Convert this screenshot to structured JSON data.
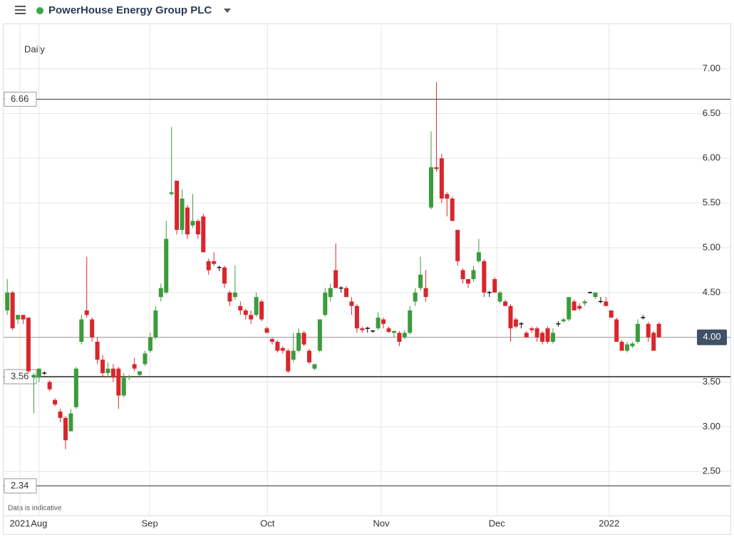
{
  "chart_data": {
    "type": "candlestick",
    "title": "PowerHouse Energy Group PLC",
    "interval": "Daily",
    "note": "Data is indicative",
    "up_color": "#3c9b3c",
    "down_color": "#d8262c",
    "flat_color": "#111111",
    "open": [
      4.3,
      4.5,
      4.2,
      4.25,
      4.22,
      3.55,
      3.55,
      3.6,
      3.5,
      3.3,
      3.17,
      3.1,
      2.95,
      3.22,
      3.95,
      4.3,
      4.2,
      3.95,
      3.75,
      3.6,
      3.65,
      3.65,
      3.35,
      3.55,
      3.7,
      3.58,
      3.7,
      3.85,
      4.0,
      4.45,
      4.5,
      5.6,
      5.75,
      5.2,
      5.45,
      5.25,
      5.3,
      5.35,
      4.85,
      4.85,
      4.78,
      4.78,
      4.5,
      4.45,
      4.35,
      4.3,
      4.25,
      4.25,
      4.4,
      4.1,
      3.98,
      3.95,
      3.88,
      3.85,
      3.75,
      3.85,
      4.05,
      3.85,
      3.65,
      3.85,
      4.25,
      4.45,
      4.75,
      4.55,
      4.55,
      4.4,
      4.35,
      4.1,
      4.1,
      4.07,
      4.1,
      4.2,
      4.1,
      4.05,
      4.05,
      4.0,
      4.05,
      4.4,
      4.55,
      4.55,
      5.45,
      5.9,
      6.0,
      5.6,
      5.55,
      5.2,
      4.75,
      4.65,
      4.65,
      4.85,
      4.85,
      4.5,
      4.65,
      4.4,
      4.4,
      4.35,
      4.2,
      4.15,
      4.05,
      4.1,
      4.1,
      4.05,
      4.1,
      3.95,
      4.15,
      4.18,
      4.2,
      4.4,
      4.35,
      4.38,
      4.5,
      4.45,
      4.4,
      4.4,
      4.3,
      4.2,
      3.95,
      3.85,
      3.9,
      3.95,
      4.22,
      4.15,
      4.05,
      4.15
    ],
    "high": [
      4.65,
      4.52,
      4.25,
      4.25,
      4.22,
      3.6,
      3.65,
      3.62,
      3.52,
      3.32,
      3.2,
      3.12,
      3.2,
      3.67,
      4.25,
      4.9,
      4.22,
      4.0,
      3.8,
      3.72,
      3.7,
      3.67,
      3.6,
      3.58,
      3.77,
      3.62,
      3.85,
      4.05,
      4.35,
      4.6,
      5.3,
      6.35,
      5.75,
      5.65,
      5.48,
      5.6,
      5.32,
      5.38,
      4.88,
      4.95,
      4.8,
      4.8,
      4.52,
      4.8,
      4.4,
      4.32,
      4.3,
      4.5,
      4.42,
      4.12,
      4.0,
      3.97,
      3.9,
      3.87,
      4.05,
      4.1,
      4.07,
      3.87,
      3.7,
      4.2,
      4.55,
      4.6,
      5.05,
      4.57,
      4.57,
      4.45,
      4.37,
      4.12,
      4.12,
      4.08,
      4.28,
      4.22,
      4.12,
      4.08,
      4.07,
      4.08,
      4.35,
      4.55,
      4.9,
      4.75,
      6.3,
      6.85,
      6.05,
      5.62,
      5.57,
      5.2,
      4.77,
      4.65,
      4.8,
      5.1,
      4.87,
      4.52,
      4.67,
      4.52,
      4.42,
      4.37,
      4.22,
      4.17,
      4.07,
      4.12,
      4.12,
      4.07,
      4.12,
      4.1,
      4.18,
      4.22,
      4.45,
      4.42,
      4.38,
      4.42,
      4.51,
      4.5,
      4.45,
      4.45,
      4.3,
      4.22,
      3.97,
      3.95,
      3.95,
      4.2,
      4.25,
      4.17,
      4.07,
      4.17
    ],
    "low": [
      4.25,
      4.08,
      4.15,
      4.15,
      3.6,
      3.15,
      3.5,
      3.58,
      3.4,
      3.23,
      3.05,
      2.75,
      2.95,
      3.2,
      3.92,
      4.22,
      3.95,
      3.7,
      3.55,
      3.55,
      3.5,
      3.2,
      3.33,
      3.52,
      3.62,
      3.55,
      3.68,
      3.83,
      3.98,
      4.4,
      4.48,
      5.58,
      5.15,
      5.15,
      5.1,
      5.22,
      5.1,
      4.95,
      4.7,
      4.8,
      4.74,
      4.55,
      4.35,
      4.42,
      4.25,
      4.2,
      4.15,
      4.23,
      4.18,
      4.05,
      3.92,
      3.83,
      3.82,
      3.6,
      3.72,
      3.83,
      3.9,
      3.7,
      3.63,
      3.83,
      4.23,
      4.4,
      4.55,
      4.5,
      4.45,
      4.25,
      4.05,
      4.05,
      4.05,
      4.05,
      4.08,
      4.1,
      4.05,
      4.0,
      3.9,
      3.98,
      4.03,
      4.35,
      4.52,
      4.4,
      5.43,
      5.85,
      5.5,
      5.35,
      5.3,
      4.8,
      4.6,
      4.55,
      4.62,
      4.83,
      4.45,
      4.45,
      4.5,
      4.38,
      4.35,
      3.95,
      4.1,
      4.1,
      4.0,
      4.05,
      3.95,
      3.92,
      3.93,
      3.93,
      4.12,
      4.16,
      4.18,
      4.3,
      4.3,
      4.35,
      4.49,
      4.43,
      4.38,
      4.35,
      4.22,
      3.95,
      3.85,
      3.83,
      3.88,
      3.93,
      4.2,
      3.95,
      3.85,
      4.0
    ],
    "close": [
      4.5,
      4.1,
      4.25,
      4.2,
      3.62,
      3.58,
      3.65,
      3.6,
      3.42,
      3.25,
      3.1,
      2.85,
      3.15,
      3.65,
      4.2,
      4.25,
      4.0,
      3.75,
      3.6,
      3.65,
      3.55,
      3.35,
      3.55,
      3.56,
      3.65,
      3.62,
      3.82,
      4.0,
      4.3,
      4.55,
      5.1,
      5.62,
      5.2,
      5.55,
      5.15,
      5.3,
      5.15,
      4.95,
      4.75,
      4.82,
      4.78,
      4.6,
      4.4,
      4.5,
      4.3,
      4.25,
      4.2,
      4.45,
      4.2,
      4.05,
      3.95,
      3.85,
      3.85,
      3.62,
      3.85,
      4.05,
      3.92,
      3.72,
      3.7,
      4.2,
      4.5,
      4.55,
      4.55,
      4.55,
      4.45,
      4.35,
      4.1,
      4.08,
      4.1,
      4.07,
      4.22,
      4.15,
      4.06,
      4.07,
      3.95,
      4.05,
      4.3,
      4.5,
      4.7,
      4.45,
      5.9,
      5.88,
      5.55,
      5.55,
      5.3,
      4.85,
      4.65,
      4.6,
      4.75,
      4.95,
      4.5,
      4.5,
      4.5,
      4.5,
      4.35,
      4.1,
      4.12,
      4.15,
      4.0,
      4.08,
      4.0,
      3.95,
      3.95,
      4.05,
      4.15,
      4.2,
      4.45,
      4.3,
      4.32,
      4.4,
      4.5,
      4.5,
      4.4,
      4.35,
      4.22,
      3.95,
      3.85,
      3.92,
      3.93,
      4.15,
      4.22,
      4.0,
      3.85,
      4.0
    ],
    "ylim": [
      2.2,
      7.49
    ],
    "yticks": [
      {
        "value": 2.5,
        "label": "2.50"
      },
      {
        "value": 3,
        "label": "3.00"
      },
      {
        "value": 3.5,
        "label": "3.50"
      },
      {
        "value": 4,
        "label": "4.00"
      },
      {
        "value": 4.5,
        "label": "4.50"
      },
      {
        "value": 5,
        "label": "5.00"
      },
      {
        "value": 5.5,
        "label": "5.50"
      },
      {
        "value": 6,
        "label": "6.00"
      },
      {
        "value": 6.5,
        "label": "6.50"
      },
      {
        "value": 7,
        "label": "7.00"
      }
    ],
    "xlim": [
      -0.7,
      136.5
    ],
    "xticks": [
      {
        "value": 2.4,
        "label": "2021"
      },
      {
        "value": 6.0,
        "label": "Aug"
      },
      {
        "value": 26.9,
        "label": "Sep"
      },
      {
        "value": 49.1,
        "label": "Oct"
      },
      {
        "value": 70.6,
        "label": "Nov"
      },
      {
        "value": 92.4,
        "label": "Dec"
      },
      {
        "value": 113.6,
        "label": "2022"
      }
    ],
    "reference_lines": [
      6.66,
      3.56,
      2.34
    ],
    "last_price": {
      "value": 4,
      "label": "4.00"
    },
    "grid": true
  }
}
